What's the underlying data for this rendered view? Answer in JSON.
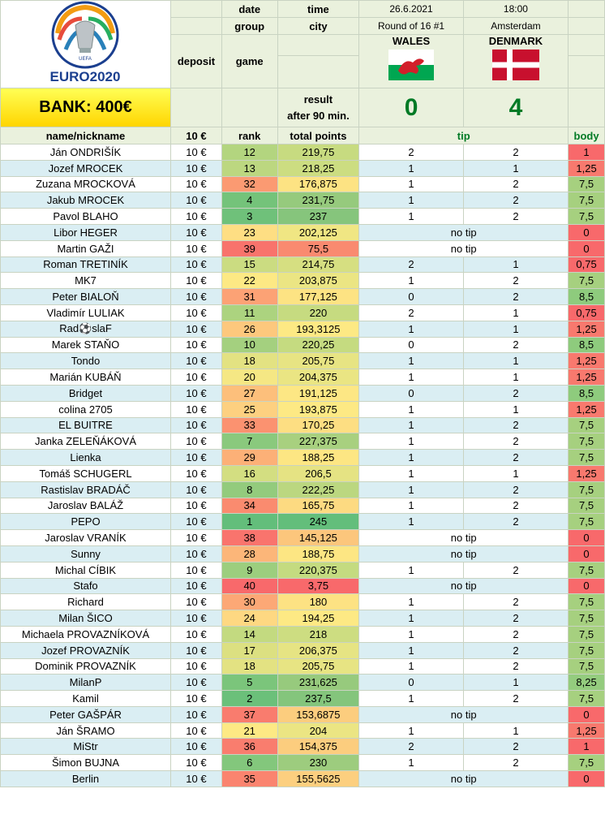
{
  "header": {
    "logo_text": "EURO2020",
    "logo_small": "UEFA",
    "bank": "BANK: 400€",
    "labels": {
      "date": "date",
      "time": "time",
      "group": "group",
      "city": "city",
      "deposit": "deposit",
      "game": "game",
      "result": "result",
      "after90": "after 90 min."
    },
    "match_date": "26.6.2021",
    "match_time": "18:00",
    "round": "Round of 16 #1",
    "city": "Amsterdam",
    "home_team": "WALES",
    "away_team": "DENMARK",
    "home_score": "0",
    "away_score": "4"
  },
  "columns": {
    "name": "name/nickname",
    "deposit": "10 €",
    "rank": "rank",
    "total": "total points",
    "tip": "tip",
    "body": "body"
  },
  "colors": {
    "header_bg": "#eaf1dd",
    "row_alt": "#daeef3",
    "score_green": "#007a25",
    "bank_yellow": "#ffff00"
  },
  "rows": [
    {
      "name": "Ján ONDRIŠÍK",
      "deposit": "10 €",
      "rank": "12",
      "total": "219,75",
      "tip1": "2",
      "tip2": "2",
      "body": "1",
      "rank_color": "#b3d57f",
      "total_color": "#c7db80",
      "body_color": "#f8696b"
    },
    {
      "name": "Jozef MROCEK",
      "deposit": "10 €",
      "rank": "13",
      "total": "218,25",
      "tip1": "1",
      "tip2": "1",
      "body": "1,25",
      "rank_color": "#bcd780",
      "total_color": "#ccdd81",
      "body_color": "#f8796e"
    },
    {
      "name": "Zuzana MROCKOVÁ",
      "deposit": "10 €",
      "rank": "32",
      "total": "176,875",
      "tip1": "1",
      "tip2": "2",
      "body": "7,5",
      "rank_color": "#fb9a72",
      "total_color": "#fde383",
      "body_color": "#a6d07f"
    },
    {
      "name": "Jakub MROCEK",
      "deposit": "10 €",
      "rank": "4",
      "total": "231,75",
      "tip1": "1",
      "tip2": "2",
      "body": "7,5",
      "rank_color": "#74c37a",
      "total_color": "#96ca7d",
      "body_color": "#a6d07f"
    },
    {
      "name": "Pavol BLAHO",
      "deposit": "10 €",
      "rank": "3",
      "total": "237",
      "tip1": "1",
      "tip2": "2",
      "body": "7,5",
      "rank_color": "#6fc17a",
      "total_color": "#86c57c",
      "body_color": "#a6d07f"
    },
    {
      "name": "Libor HEGER",
      "deposit": "10 €",
      "rank": "23",
      "total": "202,125",
      "tip1": "",
      "tip2": "",
      "notip": "no tip",
      "body": "0",
      "rank_color": "#fede83",
      "total_color": "#f0e683",
      "body_color": "#f8696b"
    },
    {
      "name": "Martin GAŽI",
      "deposit": "10 €",
      "rank": "39",
      "total": "75,5",
      "tip1": "",
      "tip2": "",
      "notip": "no tip",
      "body": "0",
      "rank_color": "#f8736c",
      "total_color": "#f98a70",
      "body_color": "#f8696b"
    },
    {
      "name": "Roman TRETINÍK",
      "deposit": "10 €",
      "rank": "15",
      "total": "214,75",
      "tip1": "2",
      "tip2": "1",
      "body": "0,75",
      "rank_color": "#cbdc81",
      "total_color": "#d6df81",
      "body_color": "#f8696b"
    },
    {
      "name": "MK7",
      "deposit": "10 €",
      "rank": "22",
      "total": "203,875",
      "tip1": "1",
      "tip2": "2",
      "body": "7,5",
      "rank_color": "#fde984",
      "total_color": "#ebe583",
      "body_color": "#a6d07f"
    },
    {
      "name": "Peter BIALOŇ",
      "deposit": "10 €",
      "rank": "31",
      "total": "177,125",
      "tip1": "0",
      "tip2": "2",
      "body": "8,5",
      "rank_color": "#fca275",
      "total_color": "#fde383",
      "body_color": "#8ecb7d"
    },
    {
      "name": "Vladimír LULIAK",
      "deposit": "10 €",
      "rank": "11",
      "total": "220",
      "tip1": "2",
      "tip2": "1",
      "body": "0,75",
      "rank_color": "#acd37f",
      "total_color": "#c6db80",
      "body_color": "#f8696b"
    },
    {
      "name": "Rad⚽slaF",
      "deposit": "10 €",
      "rank": "26",
      "total": "193,3125",
      "tip1": "1",
      "tip2": "1",
      "body": "1,25",
      "rank_color": "#fdc87d",
      "total_color": "#fde984",
      "body_color": "#f8796e"
    },
    {
      "name": "Marek STAŇO",
      "deposit": "10 €",
      "rank": "10",
      "total": "220,25",
      "tip1": "0",
      "tip2": "2",
      "body": "8,5",
      "rank_color": "#a4d07f",
      "total_color": "#c5db80",
      "body_color": "#8ecb7d"
    },
    {
      "name": "Tondo",
      "deposit": "10 €",
      "rank": "18",
      "total": "205,75",
      "tip1": "1",
      "tip2": "1",
      "body": "1,25",
      "rank_color": "#e3e282",
      "total_color": "#e7e483",
      "body_color": "#f8796e"
    },
    {
      "name": "Marián KUBÁŇ",
      "deposit": "10 €",
      "rank": "20",
      "total": "204,375",
      "tip1": "1",
      "tip2": "1",
      "body": "1,25",
      "rank_color": "#f5e784",
      "total_color": "#eae583",
      "body_color": "#f8796e"
    },
    {
      "name": "Bridget",
      "deposit": "10 €",
      "rank": "27",
      "total": "191,125",
      "tip1": "0",
      "tip2": "2",
      "body": "8,5",
      "rank_color": "#fdbf7b",
      "total_color": "#fde784",
      "body_color": "#8ecb7d"
    },
    {
      "name": "colina 2705",
      "deposit": "10 €",
      "rank": "25",
      "total": "193,875",
      "tip1": "1",
      "tip2": "1",
      "body": "1,25",
      "rank_color": "#fdd080",
      "total_color": "#fde984",
      "body_color": "#f8796e"
    },
    {
      "name": "EL BUITRE",
      "deposit": "10 €",
      "rank": "33",
      "total": "170,25",
      "tip1": "1",
      "tip2": "2",
      "body": "7,5",
      "rank_color": "#fb9270",
      "total_color": "#fdde82",
      "body_color": "#a6d07f"
    },
    {
      "name": "Janka ZELEŇÁKOVÁ",
      "deposit": "10 €",
      "rank": "7",
      "total": "227,375",
      "tip1": "1",
      "tip2": "2",
      "body": "7,5",
      "rank_color": "#8ac97d",
      "total_color": "#a8d07f",
      "body_color": "#a6d07f"
    },
    {
      "name": "Lienka",
      "deposit": "10 €",
      "rank": "29",
      "total": "188,25",
      "tip1": "1",
      "tip2": "2",
      "body": "7,5",
      "rank_color": "#fcb077",
      "total_color": "#fde683",
      "body_color": "#a6d07f"
    },
    {
      "name": "Tomáš SCHUGERL",
      "deposit": "10 €",
      "rank": "16",
      "total": "206,5",
      "tip1": "1",
      "tip2": "1",
      "body": "1,25",
      "rank_color": "#d3de81",
      "total_color": "#e5e383",
      "body_color": "#f8796e"
    },
    {
      "name": "Rastislav BRADÁČ",
      "deposit": "10 €",
      "rank": "8",
      "total": "222,25",
      "tip1": "1",
      "tip2": "2",
      "body": "7,5",
      "rank_color": "#93cb7d",
      "total_color": "#bbd780",
      "body_color": "#a6d07f"
    },
    {
      "name": "Jaroslav BALÁŽ",
      "deposit": "10 €",
      "rank": "34",
      "total": "165,75",
      "tip1": "1",
      "tip2": "2",
      "body": "7,5",
      "rank_color": "#fa8b6f",
      "total_color": "#fdda81",
      "body_color": "#a6d07f"
    },
    {
      "name": "PEPO",
      "deposit": "10 €",
      "rank": "1",
      "total": "245",
      "tip1": "1",
      "tip2": "2",
      "body": "7,5",
      "rank_color": "#63be7b",
      "total_color": "#63be7b",
      "body_color": "#a6d07f"
    },
    {
      "name": "Jaroslav VRANÍK",
      "deposit": "10 €",
      "rank": "38",
      "total": "145,125",
      "tip1": "",
      "tip2": "",
      "notip": "no tip",
      "body": "0",
      "rank_color": "#f9746d",
      "total_color": "#fcc67c",
      "body_color": "#f8696b"
    },
    {
      "name": "Sunny",
      "deposit": "10 €",
      "rank": "28",
      "total": "188,75",
      "tip1": "",
      "tip2": "",
      "notip": "no tip",
      "body": "0",
      "rank_color": "#fcb679",
      "total_color": "#fde683",
      "body_color": "#f8696b"
    },
    {
      "name": "Michal CÍBIK",
      "deposit": "10 €",
      "rank": "9",
      "total": "220,375",
      "tip1": "1",
      "tip2": "2",
      "body": "7,5",
      "rank_color": "#9cce7e",
      "total_color": "#c4db80",
      "body_color": "#a6d07f"
    },
    {
      "name": "Stafo",
      "deposit": "10 €",
      "rank": "40",
      "total": "3,75",
      "tip1": "",
      "tip2": "",
      "notip": "no tip",
      "body": "0",
      "rank_color": "#f8696b",
      "total_color": "#f8696b",
      "body_color": "#f8696b"
    },
    {
      "name": "Richard",
      "deposit": "10 €",
      "rank": "30",
      "total": "180",
      "tip1": "1",
      "tip2": "2",
      "body": "7,5",
      "rank_color": "#fca876",
      "total_color": "#fde283",
      "body_color": "#a6d07f"
    },
    {
      "name": "Milan ŠICO",
      "deposit": "10 €",
      "rank": "24",
      "total": "194,25",
      "tip1": "1",
      "tip2": "2",
      "body": "7,5",
      "rank_color": "#fed882",
      "total_color": "#fde984",
      "body_color": "#a6d07f"
    },
    {
      "name": "Michaela PROVAZNÍKOVÁ",
      "deposit": "10 €",
      "rank": "14",
      "total": "218",
      "tip1": "1",
      "tip2": "2",
      "body": "7,5",
      "rank_color": "#c3da80",
      "total_color": "#cddd81",
      "body_color": "#a6d07f"
    },
    {
      "name": "Jozef PROVAZNÍK",
      "deposit": "10 €",
      "rank": "17",
      "total": "206,375",
      "tip1": "1",
      "tip2": "2",
      "body": "7,5",
      "rank_color": "#dce081",
      "total_color": "#e6e483",
      "body_color": "#a6d07f"
    },
    {
      "name": "Dominik PROVAZNÍK",
      "deposit": "10 €",
      "rank": "18",
      "total": "205,75",
      "tip1": "1",
      "tip2": "2",
      "body": "7,5",
      "rank_color": "#e3e282",
      "total_color": "#e7e483",
      "body_color": "#a6d07f"
    },
    {
      "name": "MilanP",
      "deposit": "10 €",
      "rank": "5",
      "total": "231,625",
      "tip1": "0",
      "tip2": "1",
      "body": "8,25",
      "rank_color": "#7bc57b",
      "total_color": "#97ca7d",
      "body_color": "#94cc7e"
    },
    {
      "name": "Kamil",
      "deposit": "10 €",
      "rank": "2",
      "total": "237,5",
      "tip1": "1",
      "tip2": "2",
      "body": "7,5",
      "rank_color": "#6bc07a",
      "total_color": "#84c57c",
      "body_color": "#a6d07f"
    },
    {
      "name": "Peter GAŠPÁR",
      "deposit": "10 €",
      "rank": "37",
      "total": "153,6875",
      "tip1": "",
      "tip2": "",
      "notip": "no tip",
      "body": "0",
      "rank_color": "#f97c6e",
      "total_color": "#fccd7e",
      "body_color": "#f8696b"
    },
    {
      "name": "Ján ŠRAMO",
      "deposit": "10 €",
      "rank": "21",
      "total": "204",
      "tip1": "1",
      "tip2": "1",
      "body": "1,25",
      "rank_color": "#fde984",
      "total_color": "#ebe583",
      "body_color": "#f8796e"
    },
    {
      "name": "MiStr",
      "deposit": "10 €",
      "rank": "36",
      "total": "154,375",
      "tip1": "2",
      "tip2": "2",
      "body": "1",
      "rank_color": "#f97d6e",
      "total_color": "#fccd7e",
      "body_color": "#f8696b"
    },
    {
      "name": "Šimon BUJNA",
      "deposit": "10 €",
      "rank": "6",
      "total": "230",
      "tip1": "1",
      "tip2": "2",
      "body": "7,5",
      "rank_color": "#83c77c",
      "total_color": "#9dcc7e",
      "body_color": "#a6d07f"
    },
    {
      "name": "Berlin",
      "deposit": "10 €",
      "rank": "35",
      "total": "155,5625",
      "tip1": "",
      "tip2": "",
      "notip": "no tip",
      "body": "0",
      "rank_color": "#fa846f",
      "total_color": "#fccf7f",
      "body_color": "#f8696b"
    }
  ]
}
